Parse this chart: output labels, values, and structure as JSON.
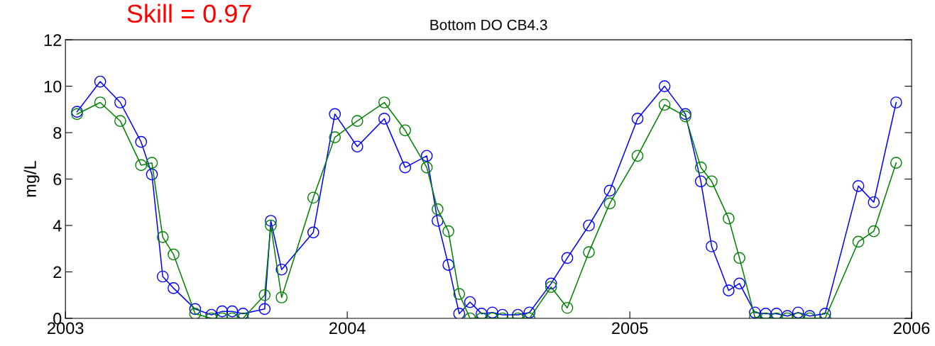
{
  "chart_data": {
    "type": "line",
    "title": "Bottom DO CB4.3",
    "ylabel": "mg/L",
    "annotations": [
      "Skill = 0.97"
    ],
    "x": [
      "2003-01-16",
      "2003-02-15",
      "2003-03-13",
      "2003-04-09",
      "2003-04-23",
      "2003-05-07",
      "2003-05-21",
      "2003-06-18",
      "2003-07-09",
      "2003-07-23",
      "2003-08-05",
      "2003-08-19",
      "2003-09-16",
      "2003-09-24",
      "2003-10-08",
      "2003-11-18",
      "2003-12-16",
      "2004-01-14",
      "2004-02-18",
      "2004-03-16",
      "2004-04-13",
      "2004-04-27",
      "2004-05-11",
      "2004-05-25",
      "2004-06-08",
      "2004-06-23",
      "2004-07-07",
      "2004-07-20",
      "2004-08-09",
      "2004-08-24",
      "2004-09-21",
      "2004-10-12",
      "2004-11-09",
      "2004-12-06",
      "2005-01-11",
      "2005-02-15",
      "2005-03-14",
      "2005-04-03",
      "2005-04-17",
      "2005-05-09",
      "2005-05-23",
      "2005-06-12",
      "2005-06-26",
      "2005-07-10",
      "2005-07-24",
      "2005-08-07",
      "2005-08-22",
      "2005-09-11",
      "2005-10-24",
      "2005-11-13",
      "2005-12-12"
    ],
    "series": [
      {
        "color": "#0000ff",
        "values": [
          8.9,
          10.2,
          9.3,
          7.6,
          6.2,
          1.8,
          1.3,
          0.4,
          0.15,
          0.3,
          0.3,
          0.2,
          0.4,
          4.2,
          2.1,
          3.7,
          8.8,
          7.4,
          8.6,
          6.5,
          7.0,
          4.2,
          2.3,
          0.2,
          0.7,
          0.2,
          0.25,
          0.15,
          0.15,
          0.25,
          1.5,
          2.6,
          4.0,
          5.5,
          8.6,
          10.0,
          8.8,
          5.9,
          3.1,
          1.2,
          1.5,
          0.25,
          0.2,
          0.2,
          0.1,
          0.25,
          0.1,
          0.2,
          5.7,
          5.0,
          9.3
        ]
      },
      {
        "color": "#008000",
        "values": [
          8.8,
          9.3,
          8.5,
          6.6,
          6.7,
          3.5,
          2.75,
          0.2,
          0.0,
          0.0,
          0.0,
          0.0,
          1.0,
          4.0,
          0.9,
          5.2,
          7.8,
          8.5,
          9.3,
          8.1,
          6.5,
          4.7,
          3.75,
          1.05,
          0.0,
          0.0,
          0.0,
          0.0,
          0.0,
          0.0,
          1.35,
          0.45,
          2.85,
          4.95,
          7.0,
          9.2,
          8.7,
          6.5,
          5.9,
          4.3,
          2.6,
          0.05,
          0.0,
          0.0,
          0.0,
          0.0,
          0.0,
          0.0,
          3.3,
          3.75,
          6.7
        ]
      }
    ],
    "xlim": [
      "2003-01-01",
      "2006-01-01"
    ],
    "xticks": [
      {
        "value": "2003-01-01",
        "label": "2003"
      },
      {
        "value": "2004-01-01",
        "label": "2004"
      },
      {
        "value": "2005-01-01",
        "label": "2005"
      },
      {
        "value": "2006-01-01",
        "label": "2006"
      }
    ],
    "ylim": [
      0,
      12
    ],
    "yticks": [
      0,
      2,
      4,
      6,
      8,
      10,
      12
    ],
    "grid": false,
    "marker": "circle",
    "line_style": "solid"
  }
}
